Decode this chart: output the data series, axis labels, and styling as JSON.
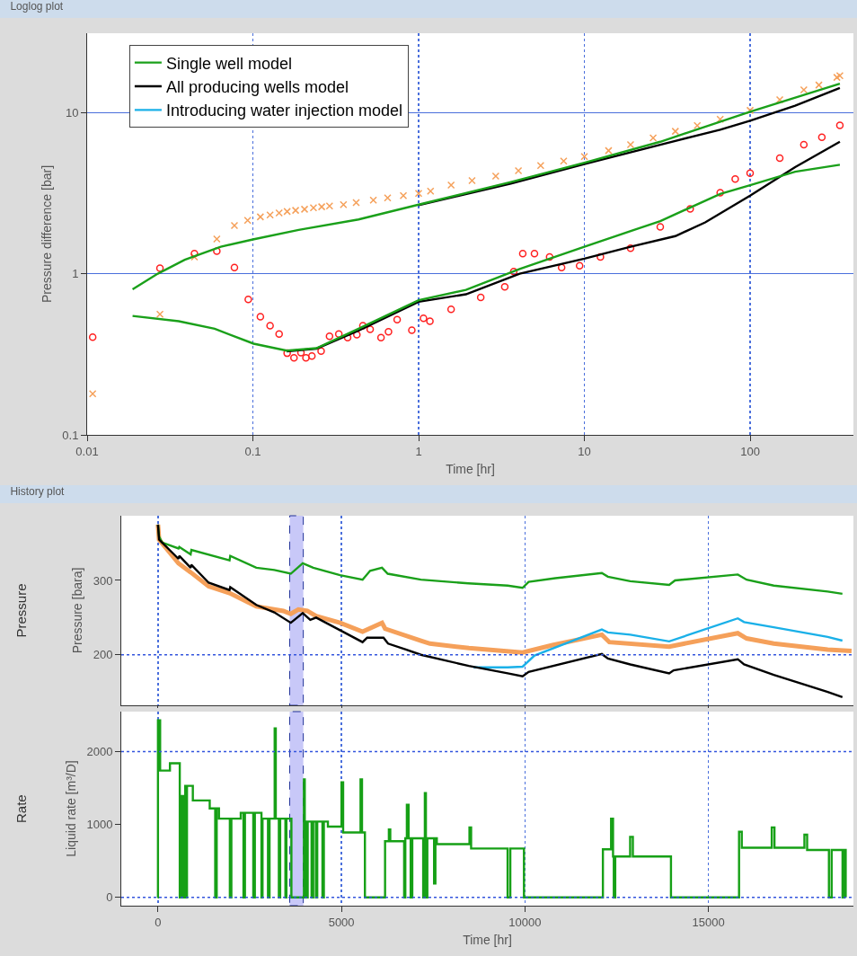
{
  "chart_data": [
    {
      "type": "line",
      "title": "Loglog plot",
      "xlabel": "Time [hr]",
      "ylabel": "Pressure difference [bar]",
      "log": "xy",
      "grid": true,
      "legend": "top left",
      "xlim": [
        0.01,
        420
      ],
      "ylim": [
        0.1,
        31
      ],
      "xticks": [
        0.01,
        0.1,
        1,
        10,
        100
      ],
      "yticks": [
        0.1,
        1,
        10
      ],
      "series": [
        {
          "type": "scatter",
          "marker": "cross",
          "color": "#f5a05a",
          "x": [
            0.0108,
            0.0275,
            0.0444,
            0.0606,
            0.0774,
            0.093,
            0.111,
            0.127,
            0.144,
            0.161,
            0.181,
            0.205,
            0.232,
            0.26,
            0.29,
            0.352,
            0.42,
            0.533,
            0.65,
            0.809,
            1.0,
            1.18,
            1.57,
            2.1,
            2.92,
            4.0,
            5.45,
            7.5,
            10,
            14,
            19,
            26,
            35.4,
            48,
            66,
            100,
            151,
            211,
            260,
            334,
            348
          ],
          "values": [
            0.18,
            0.56,
            1.27,
            1.64,
            1.99,
            2.14,
            2.25,
            2.31,
            2.38,
            2.43,
            2.47,
            2.51,
            2.56,
            2.6,
            2.63,
            2.68,
            2.76,
            2.86,
            2.95,
            3.05,
            3.15,
            3.25,
            3.54,
            3.78,
            4.03,
            4.35,
            4.68,
            5.0,
            5.32,
            5.8,
            6.31,
            6.95,
            7.64,
            8.3,
            9.07,
            10.3,
            12.0,
            13.8,
            14.8,
            16.5,
            16.9
          ]
        },
        {
          "type": "scatter",
          "marker": "circle",
          "color": "#ff2020",
          "x": [
            0.0108,
            0.0275,
            0.0444,
            0.0606,
            0.0774,
            0.0938,
            0.111,
            0.127,
            0.144,
            0.161,
            0.177,
            0.195,
            0.209,
            0.227,
            0.258,
            0.29,
            0.33,
            0.373,
            0.424,
            0.461,
            0.51,
            0.593,
            0.658,
            0.742,
            0.91,
            1.07,
            1.17,
            1.57,
            2.37,
            3.31,
            3.75,
            4.25,
            5.0,
            6.17,
            7.29,
            9.36,
            12.5,
            19,
            28.7,
            43.5,
            66,
            81.3,
            100,
            151,
            211,
            271,
            348
          ],
          "values": [
            0.404,
            1.08,
            1.33,
            1.38,
            1.09,
            0.692,
            0.54,
            0.475,
            0.422,
            0.321,
            0.301,
            0.324,
            0.301,
            0.308,
            0.331,
            0.409,
            0.422,
            0.401,
            0.418,
            0.475,
            0.452,
            0.401,
            0.436,
            0.518,
            0.446,
            0.529,
            0.507,
            0.601,
            0.713,
            0.829,
            1.03,
            1.33,
            1.33,
            1.27,
            1.09,
            1.12,
            1.27,
            1.44,
            1.95,
            2.52,
            3.18,
            3.86,
            4.2,
            5.2,
            6.31,
            7.02,
            8.33
          ]
        },
        {
          "name": "Introducing water injection model",
          "color": "#1ab0e8",
          "values": [
            null
          ]
        },
        {
          "name": "All producing wells model",
          "color": "#000000",
          "x": [
            1,
            3.6,
            10,
            28.7,
            66,
            100,
            187,
            348
          ],
          "values": [
            2.66,
            3.62,
            4.78,
            6.31,
            7.81,
            8.88,
            11.0,
            14.2
          ]
        },
        {
          "color": "#000000",
          "x": [
            0.16,
            0.242,
            0.434,
            1,
            1.93,
            4.07,
            10,
            19,
            35.4,
            53.6,
            100,
            187,
            348
          ],
          "values": [
            0.33,
            0.343,
            0.443,
            0.669,
            0.745,
            1.0,
            1.24,
            1.47,
            1.71,
            2.08,
            3.05,
            4.58,
            6.58
          ]
        },
        {
          "name": "Single well model",
          "color": "#1aa01a",
          "x": [
            0.0188,
            0.0267,
            0.0388,
            0.064,
            0.1,
            0.189,
            0.434,
            1,
            3.6,
            10,
            28.7,
            100,
            348
          ],
          "values": [
            0.8,
            1.0,
            1.22,
            1.47,
            1.63,
            1.87,
            2.17,
            2.68,
            3.7,
            4.88,
            6.58,
            10.1,
            15.1
          ]
        },
        {
          "color": "#1aa01a",
          "x": [
            0.0188,
            0.0357,
            0.0588,
            0.101,
            0.16,
            0.242,
            0.434,
            1,
            1.93,
            4.07,
            10,
            28.7,
            66,
            100,
            187,
            348
          ],
          "values": [
            0.547,
            0.507,
            0.455,
            0.368,
            0.333,
            0.345,
            0.455,
            0.684,
            0.794,
            1.07,
            1.47,
            2.12,
            3.12,
            3.54,
            4.29,
            4.74
          ]
        }
      ]
    },
    {
      "type": "line",
      "title": "History plot",
      "subtitle": "Pressure",
      "ylabel": "Pressure [bara]",
      "grid": "x",
      "tick_labels": "y",
      "xlim": [
        -1000,
        18950
      ],
      "ylim": [
        132,
        387
      ],
      "xticks": [
        0,
        5000,
        10000,
        15000
      ],
      "yticks": [
        200,
        300
      ],
      "ref_lines": [
        {
          "axis": "y",
          "value": 200,
          "color": "#3355dd",
          "line_style": "dotted"
        }
      ],
      "bands": [
        {
          "axis": "x",
          "from": 3590,
          "to": 3960,
          "color": "#c8c8f8"
        }
      ],
      "series": [
        {
          "color": "#f5a05a",
          "x": [
            0,
            30,
            560,
            890,
            1380,
            1950,
            2680,
            3415,
            3620,
            3825,
            4070,
            4310,
            4960,
            5575,
            6105,
            6190,
            7165,
            7410,
            8470,
            9935,
            10750,
            12095,
            12300,
            13930,
            15800,
            16040,
            16780,
            18250,
            18900
          ],
          "values": [
            375,
            355,
            323,
            311,
            292,
            283,
            265,
            259,
            255,
            261,
            259,
            252,
            243,
            231,
            243,
            235,
            219,
            215,
            209,
            203,
            213,
            227,
            217,
            211,
            229,
            222,
            215,
            207,
            205
          ]
        },
        {
          "color": "#1aa01a",
          "x": [
            0,
            30,
            115,
            560,
            580,
            890,
            910,
            1950,
            1970,
            2680,
            3170,
            3620,
            3945,
            4230,
            4960,
            5575,
            5780,
            6105,
            6260,
            7165,
            8460,
            9530,
            9935,
            10100,
            10830,
            12095,
            12260,
            12870,
            13930,
            14090,
            15800,
            16040,
            16780,
            18250,
            18650
          ],
          "values": [
            375,
            359,
            351,
            343,
            345,
            335,
            341,
            327,
            333,
            317,
            314,
            309,
            323,
            317,
            307,
            301,
            313,
            317,
            309,
            301,
            296,
            293,
            290,
            298,
            303,
            310,
            305,
            299,
            294,
            300,
            308,
            301,
            293,
            285,
            282
          ]
        },
        {
          "color": "#1ab0e8",
          "x": [
            8600,
            9530,
            9935,
            10260,
            12095,
            12260,
            12870,
            13930,
            15800,
            15970,
            16780,
            18250,
            18650
          ],
          "values": [
            183,
            183,
            184,
            199,
            234,
            230,
            227,
            218,
            249,
            244,
            237,
            224,
            219
          ]
        },
        {
          "color": "#000000",
          "x": [
            0,
            30,
            560,
            580,
            890,
            910,
            1380,
            1950,
            1970,
            2680,
            3170,
            3620,
            3945,
            4150,
            4310,
            4960,
            5575,
            5700,
            6145,
            6270,
            6755,
            7165,
            8470,
            9530,
            9935,
            10100,
            12095,
            12260,
            12870,
            13930,
            14050,
            15800,
            15970,
            16780,
            18250,
            18650
          ],
          "values": [
            375,
            355,
            329,
            333,
            317,
            321,
            297,
            287,
            291,
            267,
            257,
            243,
            256,
            247,
            250,
            233,
            217,
            223,
            223,
            215,
            207,
            200,
            185,
            175,
            171,
            177,
            201,
            195,
            187,
            175,
            179,
            194,
            187,
            173,
            150,
            143
          ]
        }
      ]
    },
    {
      "type": "step",
      "subtitle": "Rate",
      "xlabel": "Time [hr]",
      "ylabel": "Liquid rate [m³/D]",
      "grid": "x",
      "xlim": [
        -1000,
        18950
      ],
      "ylim": [
        -115,
        2550
      ],
      "xticks": [
        0,
        5000,
        10000,
        15000
      ],
      "yticks": [
        0,
        1000,
        2000
      ],
      "ref_lines": [
        {
          "axis": "y",
          "value": 0,
          "color": "#3355dd",
          "line_style": "dotted"
        },
        {
          "axis": "y",
          "value": 2000,
          "color": "#3355dd",
          "line_style": "dotted"
        }
      ],
      "bands": [
        {
          "axis": "x",
          "from": 3590,
          "to": 3960,
          "color": "#c8c8f8"
        }
      ],
      "series": [
        {
          "color": "#16a016",
          "x": [
            -10,
            0,
            59,
            326,
            594,
            650,
            697,
            742,
            772,
            790,
            950,
            1410,
            1560,
            1600,
            1662,
            1959,
            2000,
            2256,
            2330,
            2370,
            2597,
            2640,
            2820,
            2849,
            2998,
            3040,
            3180,
            3210,
            3294,
            3330,
            3473,
            3500,
            3636,
            3977,
            4000,
            4036,
            4080,
            4185,
            4230,
            4304,
            4340,
            4482,
            4520,
            4630,
            5001,
            5046,
            5520,
            5560,
            5639,
            6188,
            6292,
            6330,
            6708,
            6740,
            6782,
            6830,
            6886,
            6930,
            7227,
            7272,
            7301,
            7340,
            7524,
            7560,
            7598,
            8488,
            8533,
            9527,
            9601,
            9973,
            12124,
            12347,
            12400,
            12421,
            12460,
            12866,
            12940,
            13979,
            15834,
            15908,
            16725,
            16799,
            17615,
            17689,
            18283,
            18357,
            18654,
            18700,
            18740
          ],
          "values": [
            0,
            2430,
            1740,
            1840,
            0,
            1390,
            0,
            1530,
            0,
            1530,
            1330,
            1220,
            0,
            1220,
            1080,
            0,
            1080,
            1160,
            0,
            1160,
            0,
            1160,
            0,
            1080,
            0,
            1080,
            2320,
            1080,
            0,
            1080,
            0,
            1080,
            0,
            1620,
            1040,
            0,
            1040,
            0,
            1040,
            0,
            1040,
            0,
            1040,
            970,
            1580,
            890,
            1620,
            890,
            0,
            770,
            930,
            770,
            0,
            810,
            1270,
            810,
            0,
            810,
            0,
            1430,
            0,
            810,
            190,
            810,
            730,
            960,
            670,
            0,
            670,
            0,
            660,
            1080,
            560,
            0,
            560,
            830,
            560,
            0,
            900,
            680,
            960,
            680,
            860,
            650,
            0,
            650,
            0,
            650,
            0
          ]
        }
      ]
    }
  ]
}
